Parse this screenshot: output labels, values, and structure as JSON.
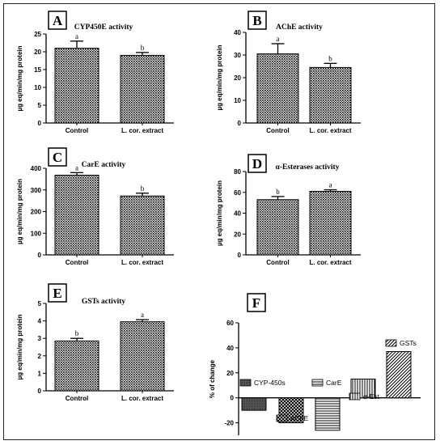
{
  "chart_data": [
    {
      "panel": "A",
      "type": "bar",
      "title": "CYP450E activity",
      "ylabel": "µg eq/min/mg protein",
      "ylim": [
        0,
        25
      ],
      "yticks": [
        0,
        5,
        10,
        15,
        20,
        25
      ],
      "categories": [
        "Control",
        "L. cor. extract"
      ],
      "values": [
        21,
        19
      ],
      "errors": [
        2,
        0.8
      ],
      "sig": [
        "a",
        "b"
      ]
    },
    {
      "panel": "B",
      "type": "bar",
      "title": "AChE activity",
      "ylabel": "µg eq/min/mg protein",
      "ylim": [
        0,
        40
      ],
      "yticks": [
        0,
        10,
        20,
        30,
        40
      ],
      "categories": [
        "Control",
        "L. cor. extract"
      ],
      "values": [
        30.5,
        24.5
      ],
      "errors": [
        4.5,
        1.8
      ],
      "sig": [
        "a",
        "b"
      ]
    },
    {
      "panel": "C",
      "type": "bar",
      "title": "CarE activity",
      "ylabel": "µg eq/min/mg protein",
      "ylim": [
        0,
        400
      ],
      "yticks": [
        0,
        100,
        200,
        300,
        400
      ],
      "categories": [
        "Control",
        "L. cor. extract"
      ],
      "values": [
        368,
        272
      ],
      "errors": [
        12,
        13
      ],
      "sig": [
        "a",
        "b"
      ]
    },
    {
      "panel": "D",
      "type": "bar",
      "title": "α-Esterases activity",
      "ylabel": "µg eq/min/mg protein",
      "ylim": [
        0,
        80
      ],
      "yticks": [
        0,
        20,
        40,
        60,
        80
      ],
      "categories": [
        "Control",
        "L. cor. extract"
      ],
      "values": [
        53,
        61
      ],
      "errors": [
        3,
        1.5
      ],
      "sig": [
        "b",
        "a"
      ]
    },
    {
      "panel": "E",
      "type": "bar",
      "title": "GSTs activity",
      "ylabel": "µg eq/min/mg protein",
      "ylim": [
        0,
        5
      ],
      "yticks": [
        0,
        1,
        2,
        3,
        4,
        5
      ],
      "categories": [
        "Control",
        "L. cor. extract"
      ],
      "values": [
        2.85,
        3.95
      ],
      "errors": [
        0.15,
        0.12
      ],
      "sig": [
        "b",
        "a"
      ]
    },
    {
      "panel": "F",
      "type": "bar",
      "title": "",
      "ylabel": "% of change",
      "ylim": [
        -30,
        60
      ],
      "yticks": [
        -20,
        0,
        20,
        40,
        60
      ],
      "categories": [
        "CYP-450s",
        "AChE",
        "CarE",
        "α-Est",
        "GSTs"
      ],
      "values": [
        -10,
        -20,
        -26,
        15,
        37
      ],
      "legend": [
        "CYP-450s",
        "AChE",
        "CarE",
        "α-Est",
        "GSTs"
      ]
    }
  ]
}
